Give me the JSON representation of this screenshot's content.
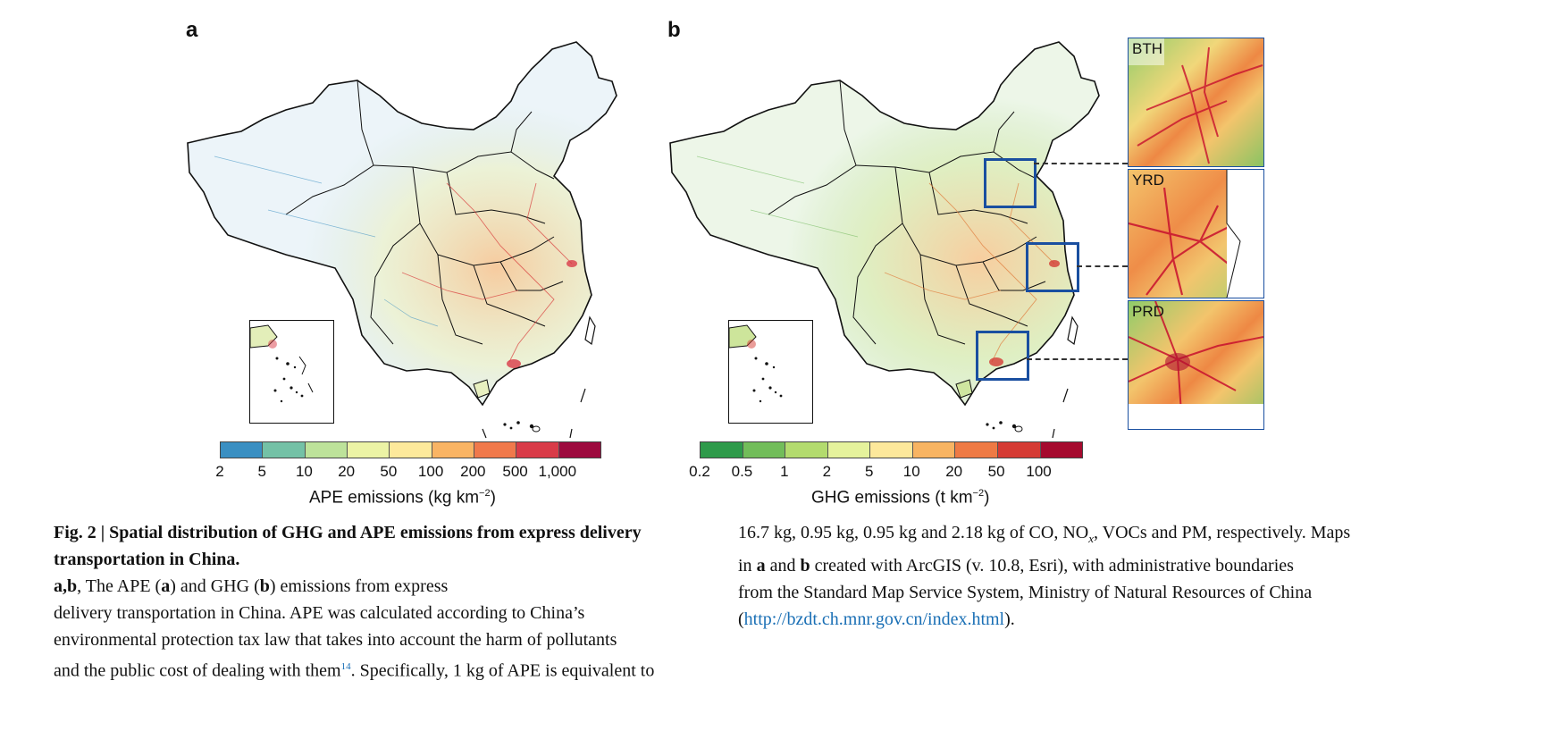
{
  "panel_a": {
    "letter": "a",
    "colorbar": {
      "colors": [
        "#3a8fc2",
        "#74c1a6",
        "#bde29a",
        "#ecf3a5",
        "#fde99b",
        "#f9b464",
        "#f0794b",
        "#d93b48",
        "#9d0a3e"
      ],
      "ticks": [
        "2",
        "5",
        "10",
        "20",
        "50",
        "100",
        "200",
        "500",
        "1,000"
      ],
      "title": "APE emissions (kg km",
      "title_exp": "−2",
      "title_end": ")"
    }
  },
  "panel_b": {
    "letter": "b",
    "colorbar": {
      "colors": [
        "#2e9a4a",
        "#72bd5a",
        "#b3db6e",
        "#e5f29c",
        "#fde89b",
        "#f8b462",
        "#ee7a44",
        "#d53b34",
        "#a50a2e"
      ],
      "ticks": [
        "0.2",
        "0.5",
        "1",
        "2",
        "5",
        "10",
        "20",
        "50",
        "100"
      ],
      "title": "GHG emissions (t km",
      "title_exp": "−2",
      "title_end": ")"
    },
    "zooms": [
      "BTH",
      "YRD",
      "PRD"
    ]
  },
  "caption": {
    "fig_label": "Fig. 2 | Spatial distribution of GHG and APE emissions from express delivery transportation in China.",
    "col1_line1_rest": "",
    "ab": "a",
    "comma": ",",
    "b": "b",
    "l2_a": ", The APE (",
    "l2_a_bold": "a",
    "l2_b": ") and GHG (",
    "l2_b_bold": "b",
    "l2_c": ") emissions from express",
    "line3": "delivery transportation in China. APE was calculated according to China’s",
    "line4": "environmental protection tax law that takes into account the harm of pollutants",
    "line5a": "and the public cost of dealing with them",
    "ref": "14",
    "line5b": ". Specifically, 1 kg of APE is equivalent to",
    "c2_line1a": "16.7 kg, 0.95 kg, 0.95 kg and 2.18 kg of CO, NO",
    "c2_sub": "x",
    "c2_line1b": ", VOCs and PM, respectively. Maps",
    "c2_line2a": "in ",
    "c2_a": "a",
    "c2_and": " and ",
    "c2_b": "b",
    "c2_line2b": " created with ArcGIS (v. 10.8, Esri), with administrative boundaries",
    "c2_line3": "from the Standard Map Service System, Ministry of Natural Resources of China",
    "c2_line4_open": "(",
    "c2_link": "http://bzdt.ch.mnr.gov.cn/index.html",
    "c2_line4_close": ")."
  }
}
